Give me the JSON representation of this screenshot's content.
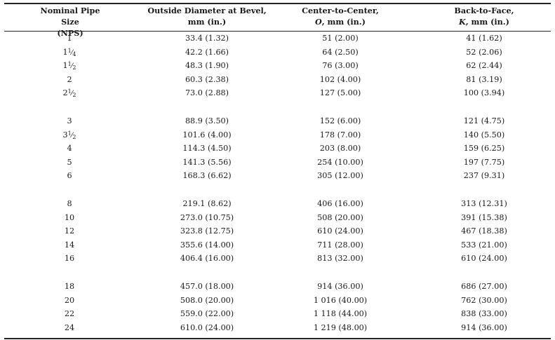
{
  "header": {
    "col1_line1": "Nominal Pipe Size",
    "col1_line2": "(NPS)",
    "col2_line1": "Outside Diameter at Bevel,",
    "col2_line2": "mm (in.)",
    "col3_line1": "Center-to-Center,",
    "col3_sym": "O",
    "col3_rest": ", mm (in.)",
    "col4_line1": "Back-to-Face,",
    "col4_sym": "K",
    "col4_rest": ", mm (in.)"
  },
  "rows": [
    {
      "nps_whole": "1",
      "nps_num": "",
      "nps_den": "",
      "od": "33.4 (1.32)",
      "ctc": "51 (2.00)",
      "btf": "41 (1.62)"
    },
    {
      "nps_whole": "1",
      "nps_num": "1",
      "nps_den": "4",
      "od": "42.2 (1.66)",
      "ctc": "64 (2.50)",
      "btf": "52 (2.06)"
    },
    {
      "nps_whole": "1",
      "nps_num": "1",
      "nps_den": "2",
      "od": "48.3 (1.90)",
      "ctc": "76 (3.00)",
      "btf": "62 (2.44)"
    },
    {
      "nps_whole": "2",
      "nps_num": "",
      "nps_den": "",
      "od": "60.3 (2.38)",
      "ctc": "102 (4.00)",
      "btf": "81 (3.19)"
    },
    {
      "nps_whole": "2",
      "nps_num": "1",
      "nps_den": "2",
      "od": "73.0 (2.88)",
      "ctc": "127 (5.00)",
      "btf": "100 (3.94)"
    },
    {
      "nps_whole": "3",
      "nps_num": "",
      "nps_den": "",
      "od": "88.9 (3.50)",
      "ctc": "152 (6.00)",
      "btf": "121 (4.75)"
    },
    {
      "nps_whole": "3",
      "nps_num": "1",
      "nps_den": "2",
      "od": "101.6 (4.00)",
      "ctc": "178 (7.00)",
      "btf": "140 (5.50)"
    },
    {
      "nps_whole": "4",
      "nps_num": "",
      "nps_den": "",
      "od": "114.3 (4.50)",
      "ctc": "203 (8.00)",
      "btf": "159 (6.25)"
    },
    {
      "nps_whole": "5",
      "nps_num": "",
      "nps_den": "",
      "od": "141.3 (5.56)",
      "ctc": "254 (10.00)",
      "btf": "197 (7.75)"
    },
    {
      "nps_whole": "6",
      "nps_num": "",
      "nps_den": "",
      "od": "168.3 (6.62)",
      "ctc": "305 (12.00)",
      "btf": "237 (9.31)"
    },
    {
      "nps_whole": "8",
      "nps_num": "",
      "nps_den": "",
      "od": "219.1 (8.62)",
      "ctc": "406 (16.00)",
      "btf": "313 (12.31)"
    },
    {
      "nps_whole": "10",
      "nps_num": "",
      "nps_den": "",
      "od": "273.0 (10.75)",
      "ctc": "508 (20.00)",
      "btf": "391 (15.38)"
    },
    {
      "nps_whole": "12",
      "nps_num": "",
      "nps_den": "",
      "od": "323.8 (12.75)",
      "ctc": "610 (24.00)",
      "btf": "467 (18.38)"
    },
    {
      "nps_whole": "14",
      "nps_num": "",
      "nps_den": "",
      "od": "355.6 (14.00)",
      "ctc": "711 (28.00)",
      "btf": "533 (21.00)"
    },
    {
      "nps_whole": "16",
      "nps_num": "",
      "nps_den": "",
      "od": "406.4 (16.00)",
      "ctc": "813 (32.00)",
      "btf": "610 (24.00)"
    },
    {
      "nps_whole": "18",
      "nps_num": "",
      "nps_den": "",
      "od": "457.0 (18.00)",
      "ctc": "914 (36.00)",
      "btf": "686 (27.00)"
    },
    {
      "nps_whole": "20",
      "nps_num": "",
      "nps_den": "",
      "od": "508.0 (20.00)",
      "ctc": "1 016 (40.00)",
      "btf": "762 (30.00)"
    },
    {
      "nps_whole": "22",
      "nps_num": "",
      "nps_den": "",
      "od": "559.0 (22.00)",
      "ctc": "1 118 (44.00)",
      "btf": "838 (33.00)"
    },
    {
      "nps_whole": "24",
      "nps_num": "",
      "nps_den": "",
      "od": "610.0 (24.00)",
      "ctc": "1 219 (48.00)",
      "btf": "914 (36.00)"
    }
  ]
}
